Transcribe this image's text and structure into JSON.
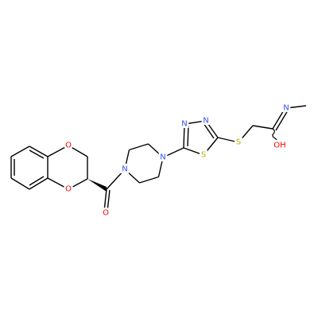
{
  "atoms": {
    "o_ring_top": "O",
    "o_ring_bottom": "O",
    "o_carbonyl": "O",
    "n_pip_left": "N",
    "n_pip_right": "N",
    "n_thiadiazole_1": "N",
    "n_thiadiazole_2": "N",
    "s_ring": "S",
    "s_thioether": "S",
    "n_imine": "N",
    "oh": "OH"
  }
}
